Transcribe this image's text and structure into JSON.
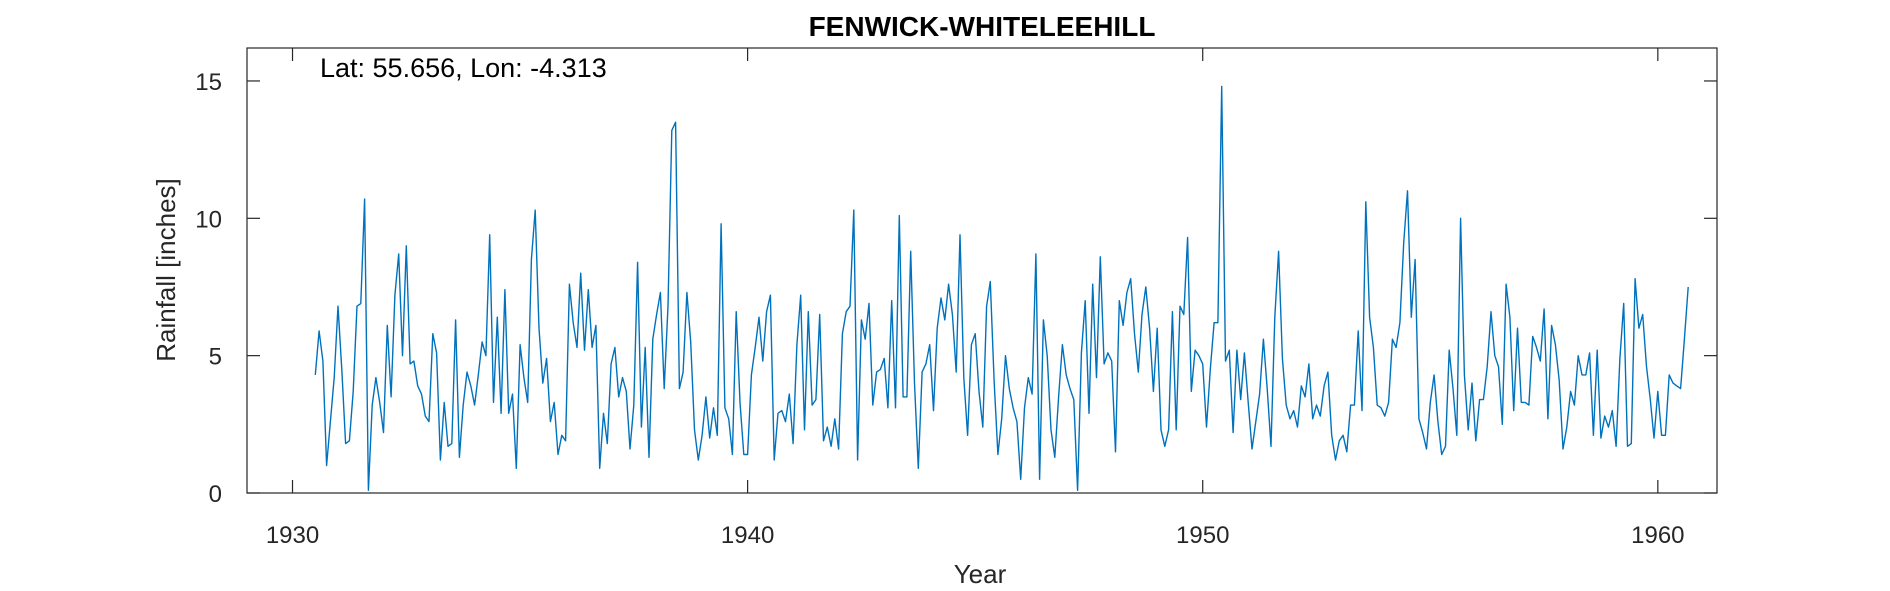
{
  "chart_data": {
    "type": "line",
    "title": "FENWICK-WHITELEEHILL",
    "annotation": "Lat: 55.656, Lon: -4.313",
    "xlabel": "Year",
    "ylabel": "Rainfall [inches]",
    "xlim": [
      1929,
      1961.3
    ],
    "ylim": [
      0,
      16.2
    ],
    "xticks": [
      1930,
      1940,
      1950,
      1960
    ],
    "yticks": [
      0,
      5,
      10,
      15
    ],
    "grid": false,
    "line_color": "#0072bd",
    "series": [
      {
        "name": "",
        "x_start": 1930.5,
        "step": 0.0833333,
        "values": [
          4.3,
          5.9,
          4.8,
          1.0,
          2.6,
          4.2,
          6.8,
          4.5,
          1.8,
          1.9,
          3.7,
          6.8,
          6.9,
          10.7,
          0.1,
          3.2,
          4.2,
          3.3,
          2.2,
          6.1,
          3.5,
          7.2,
          8.7,
          5.0,
          9.0,
          4.7,
          4.8,
          3.9,
          3.6,
          2.8,
          2.6,
          5.8,
          5.1,
          1.2,
          3.3,
          1.7,
          1.8,
          6.3,
          1.3,
          3.2,
          4.4,
          3.9,
          3.2,
          4.3,
          5.5,
          5.0,
          9.4,
          3.3,
          6.4,
          2.9,
          7.4,
          2.9,
          3.6,
          0.9,
          5.4,
          4.2,
          3.3,
          8.5,
          10.3,
          6.0,
          4.0,
          4.9,
          2.6,
          3.3,
          1.4,
          2.1,
          1.9,
          7.6,
          6.2,
          5.3,
          8.0,
          5.2,
          7.4,
          5.3,
          6.1,
          0.9,
          2.9,
          1.8,
          4.7,
          5.3,
          3.5,
          4.2,
          3.7,
          1.6,
          3.2,
          8.4,
          2.4,
          5.3,
          1.3,
          5.6,
          6.5,
          7.3,
          3.8,
          6.8,
          13.2,
          13.5,
          3.8,
          4.4,
          7.3,
          5.5,
          2.3,
          1.2,
          2.1,
          3.5,
          2.0,
          3.1,
          2.1,
          9.8,
          3.1,
          2.7,
          1.4,
          6.6,
          3.3,
          1.4,
          1.4,
          4.3,
          5.3,
          6.4,
          4.8,
          6.6,
          7.2,
          1.2,
          2.9,
          3.0,
          2.6,
          3.6,
          1.8,
          5.4,
          7.2,
          2.3,
          6.6,
          3.2,
          3.4,
          6.5,
          1.9,
          2.4,
          1.7,
          2.7,
          1.6,
          5.8,
          6.6,
          6.8,
          10.3,
          1.2,
          6.3,
          5.6,
          6.9,
          3.2,
          4.4,
          4.5,
          4.9,
          3.1,
          7.0,
          3.1,
          10.1,
          3.5,
          3.5,
          8.8,
          4.0,
          0.9,
          4.4,
          4.7,
          5.4,
          3.0,
          6.0,
          7.1,
          6.3,
          7.6,
          6.5,
          4.4,
          9.4,
          4.2,
          2.1,
          5.4,
          5.8,
          3.7,
          2.4,
          6.8,
          7.7,
          4.1,
          1.4,
          2.7,
          5.0,
          3.8,
          3.1,
          2.6,
          0.5,
          3.1,
          4.2,
          3.6,
          8.7,
          0.5,
          6.3,
          5.0,
          2.3,
          1.3,
          3.5,
          5.4,
          4.3,
          3.8,
          3.4,
          0.1,
          5.1,
          7.0,
          2.9,
          7.6,
          4.2,
          8.6,
          4.7,
          5.1,
          4.8,
          1.5,
          7.0,
          6.1,
          7.3,
          7.8,
          5.8,
          4.4,
          6.5,
          7.5,
          6.0,
          3.7,
          6.0,
          2.3,
          1.7,
          2.3,
          6.6,
          2.3,
          6.8,
          6.5,
          9.3,
          3.7,
          5.2,
          5.0,
          4.7,
          2.4,
          4.5,
          6.2,
          6.2,
          14.8,
          4.8,
          5.2,
          2.2,
          5.2,
          3.4,
          5.1,
          3.3,
          1.6,
          2.6,
          3.6,
          5.6,
          3.8,
          1.7,
          6.4,
          8.8,
          4.9,
          3.2,
          2.7,
          3.0,
          2.4,
          3.9,
          3.5,
          4.7,
          2.7,
          3.2,
          2.8,
          3.9,
          4.4,
          2.1,
          1.2,
          1.9,
          2.1,
          1.5,
          3.2,
          3.2,
          5.9,
          3.0,
          10.6,
          6.4,
          5.3,
          3.2,
          3.1,
          2.8,
          3.3,
          5.6,
          5.3,
          6.2,
          9.1,
          11.0,
          6.4,
          8.5,
          2.7,
          2.2,
          1.6,
          3.3,
          4.3,
          2.6,
          1.4,
          1.7,
          5.2,
          3.8,
          2.1,
          10.0,
          4.3,
          2.3,
          4.0,
          1.9,
          3.4,
          3.4,
          4.6,
          6.6,
          5.0,
          4.6,
          2.5,
          7.6,
          6.4,
          3.0,
          6.0,
          3.3,
          3.3,
          3.2,
          5.7,
          5.3,
          4.8,
          6.7,
          2.7,
          6.1,
          5.4,
          4.1,
          1.6,
          2.4,
          3.7,
          3.2,
          5.0,
          4.3,
          4.3,
          5.1,
          2.1,
          5.2,
          2.0,
          2.8,
          2.4,
          3.0,
          1.7,
          4.9,
          6.9,
          1.7,
          1.8,
          7.8,
          6.0,
          6.5,
          4.6,
          3.4,
          2.0,
          3.7,
          2.1,
          2.1,
          4.3,
          4.0,
          3.9,
          3.8,
          5.6,
          7.5
        ]
      }
    ]
  }
}
